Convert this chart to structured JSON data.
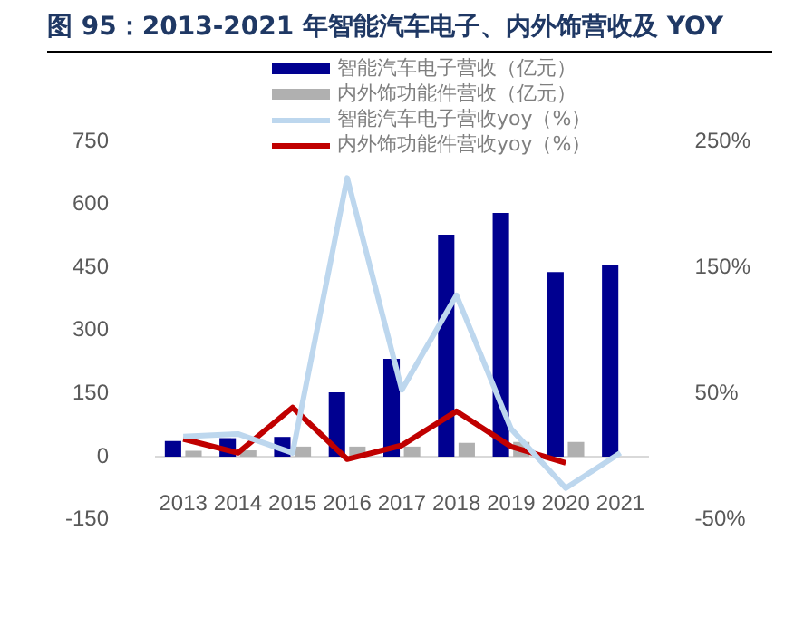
{
  "chart_data": {
    "type": "bar",
    "title": "图 95：2013-2021 年智能汽车电子、内外饰营收及 YOY",
    "categories": [
      "2013",
      "2014",
      "2015",
      "2016",
      "2017",
      "2018",
      "2019",
      "2020",
      "2021"
    ],
    "series": [
      {
        "name": "智能汽车电子营收（亿元）",
        "color": "#000090",
        "values": [
          37,
          44,
          47,
          153,
          233,
          528,
          580,
          439,
          457
        ]
      },
      {
        "name": "内外饰功能件营收（亿元）",
        "color": "#b0b0b0",
        "values": [
          14,
          15,
          24,
          24,
          24,
          33,
          35,
          35,
          null
        ]
      },
      {
        "name": "智能汽车电子营收yoy（%）",
        "type": "line",
        "axis": "y2",
        "color": "#bdd7ee",
        "values": [
          16,
          18,
          3,
          221,
          53,
          128,
          22,
          -25,
          3
        ]
      },
      {
        "name": "内外饰功能件营收yoy（%）",
        "type": "line",
        "axis": "y2",
        "color": "#c00000",
        "values": [
          14,
          3,
          39,
          -2,
          9,
          36,
          8,
          -5,
          null
        ]
      }
    ],
    "ylim": [
      -150,
      750
    ],
    "yticks": [
      -150,
      0,
      150,
      300,
      450,
      600,
      750
    ],
    "y2lim": [
      -50,
      250
    ],
    "y2ticks": [
      {
        "value": -50,
        "label": "-50%"
      },
      {
        "value": 50,
        "label": "50%"
      },
      {
        "value": 150,
        "label": "150%"
      },
      {
        "value": 250,
        "label": "250%"
      }
    ],
    "grid": false,
    "legend": "top",
    "marker": "none",
    "line_style": "solid"
  }
}
